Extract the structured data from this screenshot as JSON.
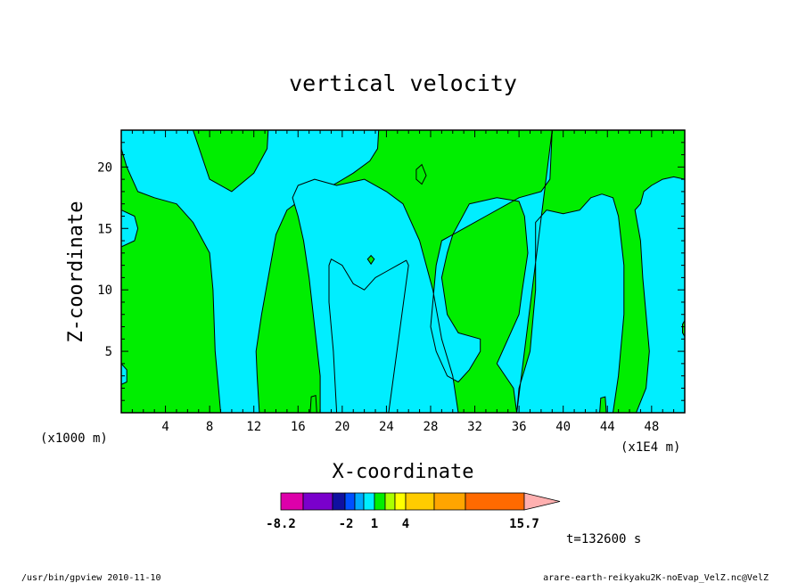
{
  "chart_data": {
    "type": "heatmap",
    "title": "vertical velocity",
    "xlabel": "X-coordinate",
    "ylabel": "Z-coordinate",
    "x_unit_left": "(x1000 m)",
    "x_unit_right": "(x1E4 m)",
    "xlim": [
      0,
      51
    ],
    "ylim": [
      0,
      23
    ],
    "x_ticks": [
      4,
      8,
      12,
      16,
      20,
      24,
      28,
      32,
      36,
      40,
      44,
      48
    ],
    "y_ticks": [
      5,
      10,
      15,
      20
    ],
    "colors": {
      "positive": "#00ee00",
      "negative": "#00eeff",
      "contour": "#000000"
    },
    "negative_regions": [
      [
        [
          0,
          23
        ],
        [
          0,
          21.5
        ],
        [
          0.5,
          20
        ],
        [
          1.5,
          18
        ],
        [
          3,
          17.5
        ],
        [
          5,
          17
        ],
        [
          6.5,
          15.5
        ],
        [
          8,
          13
        ],
        [
          8.3,
          10
        ],
        [
          8.5,
          5
        ],
        [
          8.8,
          2
        ],
        [
          9,
          0
        ],
        [
          12.5,
          0
        ],
        [
          12.3,
          3
        ],
        [
          12.2,
          5
        ],
        [
          12.7,
          8
        ],
        [
          13.5,
          12
        ],
        [
          14,
          14.5
        ],
        [
          15,
          16.5
        ],
        [
          16.5,
          17.5
        ],
        [
          18,
          18
        ],
        [
          19.5,
          18.7
        ],
        [
          21,
          19.5
        ],
        [
          22.5,
          20.5
        ],
        [
          23.2,
          21.5
        ],
        [
          23.3,
          23
        ],
        [
          13.3,
          23
        ],
        [
          13.2,
          21.5
        ],
        [
          12,
          19.5
        ],
        [
          10,
          18
        ],
        [
          8,
          19
        ],
        [
          6.5,
          23
        ]
      ],
      [
        [
          0,
          16.5
        ],
        [
          1.2,
          16
        ],
        [
          1.5,
          15
        ],
        [
          1.2,
          14
        ],
        [
          0,
          13.5
        ]
      ],
      [
        [
          0,
          4
        ],
        [
          0.5,
          3.5
        ],
        [
          0.5,
          2.5
        ],
        [
          0,
          2.3
        ]
      ],
      [
        [
          39,
          23
        ],
        [
          38.8,
          19
        ],
        [
          38,
          18
        ],
        [
          36,
          17.5
        ],
        [
          33,
          16
        ],
        [
          30,
          14.5
        ],
        [
          29,
          14
        ],
        [
          28.5,
          12
        ],
        [
          28,
          7
        ],
        [
          28.5,
          5
        ],
        [
          29.5,
          3
        ],
        [
          30.5,
          2.5
        ],
        [
          31.5,
          3.5
        ],
        [
          32.5,
          5
        ],
        [
          32.5,
          6
        ],
        [
          30.5,
          6.5
        ],
        [
          29.5,
          8
        ],
        [
          29,
          11
        ],
        [
          29.5,
          13
        ],
        [
          30,
          14.5
        ],
        [
          31.5,
          17
        ],
        [
          34,
          17.5
        ],
        [
          36,
          17.2
        ],
        [
          36.5,
          16
        ],
        [
          36.8,
          13
        ],
        [
          36.3,
          10
        ],
        [
          36,
          8
        ],
        [
          35,
          6
        ],
        [
          34,
          4
        ],
        [
          35.5,
          2
        ],
        [
          35.8,
          0
        ],
        [
          30.5,
          0
        ],
        [
          30,
          3
        ],
        [
          29,
          6
        ],
        [
          28.2,
          10
        ],
        [
          27,
          14
        ],
        [
          25.5,
          17
        ],
        [
          24,
          18
        ],
        [
          22,
          19
        ],
        [
          19.5,
          18.5
        ],
        [
          17.5,
          19
        ],
        [
          16,
          18.5
        ],
        [
          15.5,
          17.5
        ],
        [
          16,
          16
        ],
        [
          16.5,
          14
        ],
        [
          17,
          11
        ],
        [
          17.5,
          7
        ],
        [
          18,
          3
        ],
        [
          18,
          0
        ],
        [
          44.5,
          0
        ],
        [
          45,
          3
        ],
        [
          45.5,
          8
        ],
        [
          45.5,
          12
        ],
        [
          45,
          16
        ],
        [
          44.5,
          17.5
        ],
        [
          43.5,
          17.8
        ],
        [
          42.5,
          17.5
        ],
        [
          41.5,
          16.5
        ],
        [
          40,
          16.2
        ],
        [
          38.5,
          16.5
        ],
        [
          37.5,
          15.5
        ],
        [
          37.5,
          10
        ],
        [
          37,
          5
        ],
        [
          36,
          2
        ],
        [
          35.8,
          0
        ]
      ],
      [
        [
          19,
          12.5
        ],
        [
          20,
          12
        ],
        [
          21,
          10.5
        ],
        [
          22,
          10
        ],
        [
          23,
          11
        ],
        [
          24,
          11.5
        ],
        [
          25,
          12
        ],
        [
          25.8,
          12.4
        ],
        [
          26,
          12
        ],
        [
          24.2,
          0
        ],
        [
          19.5,
          0
        ],
        [
          19.2,
          5
        ],
        [
          18.8,
          9
        ],
        [
          18.8,
          12
        ]
      ],
      [
        [
          46.6,
          0
        ],
        [
          47.5,
          2
        ],
        [
          47.8,
          5
        ],
        [
          47.5,
          8
        ],
        [
          47.2,
          11
        ],
        [
          47,
          14
        ],
        [
          46.5,
          16.5
        ],
        [
          47,
          17
        ],
        [
          47.3,
          18
        ],
        [
          48,
          18.5
        ],
        [
          49,
          19
        ],
        [
          50,
          19.2
        ],
        [
          51,
          19
        ],
        [
          51,
          0
        ]
      ]
    ],
    "positive_islands": [
      [
        [
          22.3,
          12.5
        ],
        [
          22.6,
          12.8
        ],
        [
          22.9,
          12.5
        ],
        [
          22.6,
          12.1
        ]
      ],
      [
        [
          26.7,
          19.8
        ],
        [
          27.2,
          20.2
        ],
        [
          27.6,
          19.3
        ],
        [
          27.2,
          18.6
        ],
        [
          26.7,
          19
        ]
      ],
      [
        [
          17.1,
          0
        ],
        [
          17.2,
          1.3
        ],
        [
          17.6,
          1.4
        ],
        [
          17.7,
          0
        ]
      ],
      [
        [
          43.3,
          0
        ],
        [
          43.4,
          1.2
        ],
        [
          43.8,
          1.3
        ],
        [
          43.9,
          0
        ]
      ],
      [
        [
          50.8,
          7.2
        ],
        [
          51,
          7.5
        ],
        [
          51,
          6.2
        ],
        [
          50.8,
          6.5
        ]
      ]
    ],
    "colorbar": {
      "colors": [
        "#dd00aa",
        "#7a00cc",
        "#1010a0",
        "#0050ff",
        "#00aaff",
        "#00eeff",
        "#00ee00",
        "#aaff00",
        "#ffff00",
        "#ffcc00",
        "#ffa500",
        "#ff6a00",
        "#ff0000",
        "#ff7777",
        "#ffb0b0"
      ],
      "tick_labels": [
        "-8.2",
        "-2",
        "1",
        "4",
        "15.7"
      ]
    },
    "time_label": "t=132600 s",
    "footer_left": "/usr/bin/gpview   2010-11-10",
    "footer_right": "arare-earth-reikyaku2K-noEvap_VelZ.nc@VelZ"
  }
}
